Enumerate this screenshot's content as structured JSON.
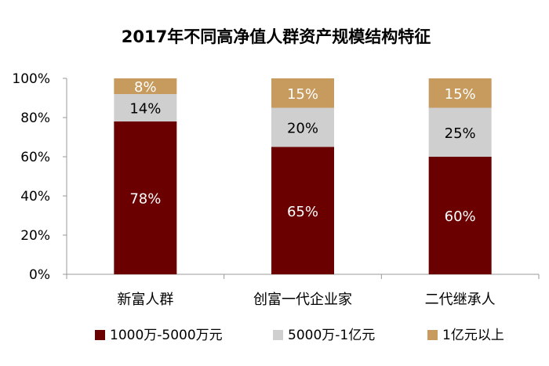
{
  "chart_data": {
    "type": "bar",
    "stacked": true,
    "title": "2017年不同高净值人群资产规模结构特征",
    "categories": [
      "新富人群",
      "创富一代企业家",
      "二代继承人"
    ],
    "series": [
      {
        "name": "1000万-5000万元",
        "values": [
          78,
          65,
          60
        ],
        "labels": [
          "78%",
          "65%",
          "60%"
        ],
        "color": "#6b0000",
        "label_color": "#ffffff"
      },
      {
        "name": "5000万-1亿元",
        "values": [
          14,
          20,
          25
        ],
        "labels": [
          "14%",
          "20%",
          "25%"
        ],
        "color": "#cfcfcf",
        "label_color": "#000000"
      },
      {
        "name": "1亿元以上",
        "values": [
          8,
          15,
          15
        ],
        "labels": [
          "8%",
          "15%",
          "15%"
        ],
        "color": "#c79a5e",
        "label_color": "#ffffff"
      }
    ],
    "y_ticks": [
      "0%",
      "20%",
      "40%",
      "60%",
      "80%",
      "100%"
    ],
    "ylim": [
      0,
      100
    ],
    "grid": false,
    "legend_position": "bottom"
  }
}
